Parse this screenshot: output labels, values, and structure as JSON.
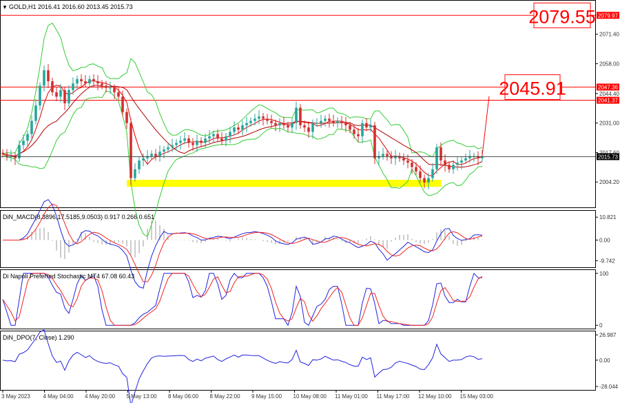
{
  "chart_data": {
    "type": "candlestick",
    "symbol_header": "GOLD,H1  2016.41 2016.60 2013.45 2015.73",
    "current_price": 2015.73,
    "current_price_label": "2015.73",
    "x_labels": [
      "3 May 2023",
      "4 May 04:00",
      "4 May 20:00",
      "5 May 13:00",
      "8 May 06:00",
      "8 May 22:00",
      "9 May 15:00",
      "10 May 08:00",
      "11 May 01:00",
      "11 May 17:00",
      "12 May 10:00",
      "15 May 03:00"
    ],
    "main": {
      "ylim": [
        1993.0,
        2086.0
      ],
      "y_ticks": [
        2004.2,
        2017.6,
        2031.0,
        2044.4,
        2058.0,
        2071.4
      ],
      "y_tick_labels": [
        "2004.20",
        "2017.60",
        "2031.00",
        "2044.40",
        "2058.00",
        "2071.40"
      ],
      "levels": [
        {
          "value": 2079.97,
          "label": "2079.97",
          "callout": "2079.55",
          "color": "#ff0000"
        },
        {
          "value": 2047.36,
          "label": "2047.36",
          "callout": "2045.91",
          "color": "#ff0000"
        },
        {
          "value": 2041.37,
          "label": "2041.37",
          "color": "#ff0000"
        }
      ],
      "support_zone": [
        2002.0,
        2005.2
      ],
      "close": [
        2017,
        2016,
        2016,
        2015,
        2021,
        2023,
        2026,
        2032,
        2039,
        2048,
        2055,
        2050,
        2045,
        2043,
        2046,
        2040,
        2046,
        2049,
        2051,
        2050,
        2049,
        2051,
        2050,
        2049,
        2048,
        2047,
        2047,
        2045,
        2043,
        2036,
        2031,
        2006,
        2010,
        2014,
        2015,
        2016,
        2017,
        2016,
        2018,
        2019,
        2020,
        2021,
        2022,
        2023,
        2024,
        2022,
        2021,
        2023,
        2022,
        2024,
        2025,
        2026,
        2024,
        2023,
        2025,
        2027,
        2029,
        2028,
        2030,
        2031,
        2032,
        2033,
        2034,
        2033,
        2032,
        2031,
        2030,
        2031,
        2030,
        2029,
        2031,
        2038,
        2030,
        2029,
        2027,
        2031,
        2031,
        2032,
        2033,
        2032,
        2031,
        2032,
        2031,
        2030,
        2028,
        2026,
        2025,
        2031,
        2029,
        2030,
        2015,
        2016,
        2017,
        2016,
        2015,
        2016,
        2015,
        2014,
        2013,
        2011,
        2009,
        2006,
        2004,
        2006,
        2010,
        2020,
        2014,
        2012,
        2010,
        2012,
        2013,
        2014,
        2015,
        2016,
        2016,
        2015,
        2016
      ],
      "fast_ma_color": "#e00000",
      "slow_ma_color": "#b00000",
      "band_color": "#33cc33",
      "projection": {
        "from": 2016.2,
        "to": 2043.2,
        "color": "#ff0000"
      }
    },
    "macd": {
      "title": "DiN_MACD(8.3896,17.5185,9.0503) 0.917 0.266 0.651",
      "ylim": [
        -12.5,
        13.5
      ],
      "y_ticks": [
        10.821,
        0.0,
        -9.742
      ],
      "y_tick_labels": [
        "10.821",
        "0.00",
        "-9.742"
      ],
      "series": [
        {
          "name": "",
          "color": "#2222dd"
        },
        {
          "name": "",
          "color": "#ee2222"
        }
      ]
    },
    "stochastic": {
      "title": "Di Napoli Preferred Stochastic MT4 67.08 60.43",
      "ylim": [
        -5,
        105
      ],
      "y_ticks": [
        100,
        0
      ],
      "y_tick_labels": [
        "100",
        "0"
      ],
      "k_value": 67.08,
      "d_value": 60.43
    },
    "dpo": {
      "title": "DiN_DPO(7, Close) 1.290",
      "ylim": [
        -31,
        30
      ],
      "y_ticks": [
        26.987,
        0.0,
        -28.044
      ],
      "y_tick_labels": [
        "26.987",
        "0.00",
        "-28.044"
      ],
      "value": 1.29
    },
    "colors": {
      "bull": "#26a69a",
      "bear": "#d32f2f",
      "grid": "#cccccc",
      "axis_text": "#333333",
      "zone": "#ffff00"
    }
  }
}
